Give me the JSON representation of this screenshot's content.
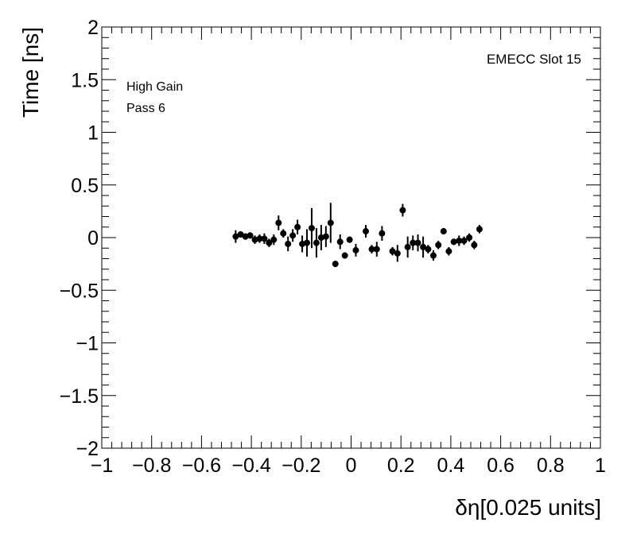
{
  "chart_data": {
    "type": "scatter",
    "xlabel": "δη[0.025 units]",
    "ylabel": "Time [ns]",
    "xlim": [
      -1,
      1
    ],
    "ylim": [
      -2,
      2
    ],
    "xticks": [
      -1,
      -0.8,
      -0.6,
      -0.4,
      -0.2,
      0,
      0.2,
      0.4,
      0.6,
      0.8,
      1
    ],
    "xtick_labels": [
      "−1",
      "−0.8",
      "−0.6",
      "−0.4",
      "−0.2",
      "0",
      "0.2",
      "0.4",
      "0.6",
      "0.8",
      "1"
    ],
    "yticks": [
      -2,
      -1.5,
      -1,
      -0.5,
      0,
      0.5,
      1,
      1.5,
      2
    ],
    "ytick_labels": [
      "−2",
      "−1.5",
      "−1",
      "−0.5",
      "0",
      "0.5",
      "1",
      "1.5",
      "2"
    ],
    "grid": false,
    "annotations": [
      "High Gain",
      "Pass 6",
      "EMECC Slot 15"
    ],
    "points": [
      {
        "x": -0.463,
        "y": 0.01,
        "err": 0.06
      },
      {
        "x": -0.443,
        "y": 0.03,
        "err": 0.03
      },
      {
        "x": -0.424,
        "y": 0.01,
        "err": 0.03
      },
      {
        "x": -0.405,
        "y": 0.02,
        "err": 0.03
      },
      {
        "x": -0.386,
        "y": -0.02,
        "err": 0.04
      },
      {
        "x": -0.367,
        "y": -0.01,
        "err": 0.04
      },
      {
        "x": -0.348,
        "y": -0.01,
        "err": 0.05
      },
      {
        "x": -0.329,
        "y": -0.05,
        "err": 0.04
      },
      {
        "x": -0.31,
        "y": -0.02,
        "err": 0.05
      },
      {
        "x": -0.291,
        "y": 0.14,
        "err": 0.07
      },
      {
        "x": -0.272,
        "y": 0.04,
        "err": 0.04
      },
      {
        "x": -0.253,
        "y": -0.06,
        "err": 0.07
      },
      {
        "x": -0.234,
        "y": 0.02,
        "err": 0.06
      },
      {
        "x": -0.215,
        "y": 0.1,
        "err": 0.07
      },
      {
        "x": -0.196,
        "y": -0.06,
        "err": 0.08
      },
      {
        "x": -0.177,
        "y": -0.05,
        "err": 0.13
      },
      {
        "x": -0.158,
        "y": 0.09,
        "err": 0.19
      },
      {
        "x": -0.139,
        "y": -0.05,
        "err": 0.14
      },
      {
        "x": -0.12,
        "y": 0.0,
        "err": 0.12
      },
      {
        "x": -0.101,
        "y": 0.01,
        "err": 0.1
      },
      {
        "x": -0.082,
        "y": 0.14,
        "err": 0.19
      },
      {
        "x": -0.063,
        "y": -0.25,
        "err": 0.03
      },
      {
        "x": -0.044,
        "y": -0.04,
        "err": 0.07
      },
      {
        "x": -0.025,
        "y": -0.17,
        "err": 0.03
      },
      {
        "x": -0.006,
        "y": -0.02,
        "err": 0.03
      },
      {
        "x": 0.019,
        "y": -0.12,
        "err": 0.06
      },
      {
        "x": 0.059,
        "y": 0.06,
        "err": 0.06
      },
      {
        "x": 0.083,
        "y": -0.11,
        "err": 0.04
      },
      {
        "x": 0.103,
        "y": -0.11,
        "err": 0.07
      },
      {
        "x": 0.124,
        "y": 0.04,
        "err": 0.07
      },
      {
        "x": 0.166,
        "y": -0.13,
        "err": 0.04
      },
      {
        "x": 0.186,
        "y": -0.15,
        "err": 0.08
      },
      {
        "x": 0.207,
        "y": 0.26,
        "err": 0.06
      },
      {
        "x": 0.227,
        "y": -0.09,
        "err": 0.1
      },
      {
        "x": 0.248,
        "y": -0.05,
        "err": 0.07
      },
      {
        "x": 0.268,
        "y": -0.05,
        "err": 0.08
      },
      {
        "x": 0.289,
        "y": -0.09,
        "err": 0.1
      },
      {
        "x": 0.309,
        "y": -0.11,
        "err": 0.04
      },
      {
        "x": 0.33,
        "y": -0.17,
        "err": 0.05
      },
      {
        "x": 0.35,
        "y": -0.07,
        "err": 0.04
      },
      {
        "x": 0.371,
        "y": 0.06,
        "err": 0.03
      },
      {
        "x": 0.392,
        "y": -0.13,
        "err": 0.04
      },
      {
        "x": 0.412,
        "y": -0.04,
        "err": 0.03
      },
      {
        "x": 0.433,
        "y": -0.03,
        "err": 0.05
      },
      {
        "x": 0.453,
        "y": -0.03,
        "err": 0.04
      },
      {
        "x": 0.474,
        "y": 0.0,
        "err": 0.04
      },
      {
        "x": 0.494,
        "y": -0.07,
        "err": 0.04
      },
      {
        "x": 0.515,
        "y": 0.08,
        "err": 0.04
      }
    ]
  }
}
